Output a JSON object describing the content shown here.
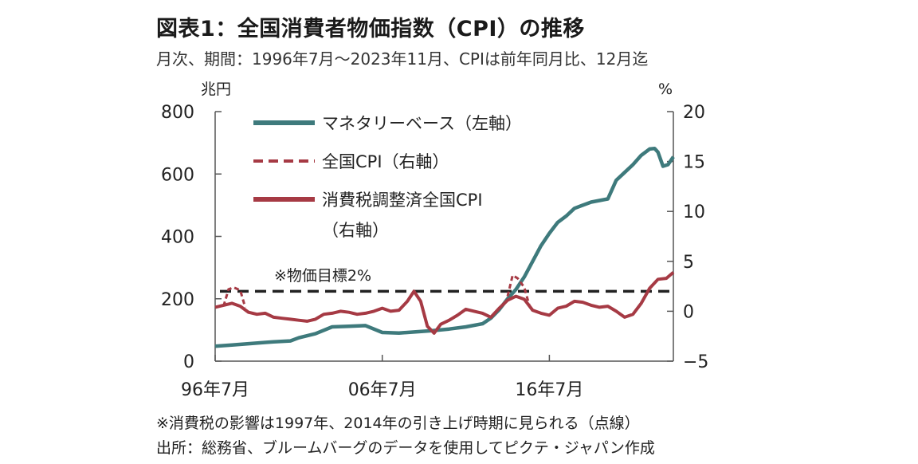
{
  "header": {
    "title": "図表1：全国消費者物価指数（CPI）の推移",
    "subtitle": "月次、期間：1996年7月～2023年11月、CPIは前年同月比、12月迄"
  },
  "footnotes": {
    "line1": "※消費税の影響は1997年、2014年の引き上げ時期に見られる（点線）",
    "line2": "出所：総務省、ブルームバーグのデータを使用してピクテ・ジャパン作成"
  },
  "colors": {
    "base": "#3e7a7c",
    "cpi": "#a63a44",
    "target": "#222222",
    "axis": "#555555"
  },
  "chart_data": {
    "type": "line",
    "left_axis": {
      "unit": "兆円",
      "range": [
        0,
        800
      ],
      "ticks": [
        "0",
        "200",
        "400",
        "600",
        "800"
      ]
    },
    "right_axis": {
      "unit": "%",
      "range": [
        -5,
        20
      ],
      "ticks": [
        "−5",
        "0",
        "5",
        "10",
        "15",
        "20"
      ]
    },
    "x_range": [
      1996.5,
      2023.92
    ],
    "x_ticks": [
      {
        "x": 1996.5,
        "label": "96年7月"
      },
      {
        "x": 2006.5,
        "label": "06年7月"
      },
      {
        "x": 2016.5,
        "label": "16年7月"
      }
    ],
    "grid": false,
    "legend_position": "top-left",
    "annotation": {
      "text": "※物価目標2%",
      "value": 2
    },
    "series": [
      {
        "name": "マネタリーベース（左軸）",
        "axis": "left",
        "style": "solid",
        "color_key": "base",
        "x": [
          1996.5,
          1997.5,
          1998.5,
          1999.5,
          2000.0,
          2001.0,
          2001.5,
          2002.5,
          2003.5,
          2004.5,
          2005.5,
          2006.5,
          2007.5,
          2008.5,
          2009.5,
          2010.5,
          2011.5,
          2012.5,
          2013.0,
          2013.5,
          2014.0,
          2014.5,
          2015.0,
          2015.5,
          2016.0,
          2016.5,
          2017.0,
          2017.5,
          2018.0,
          2018.5,
          2019.0,
          2019.5,
          2020.0,
          2020.5,
          2021.0,
          2021.5,
          2022.0,
          2022.5,
          2022.8,
          2023.0,
          2023.3,
          2023.6,
          2023.92
        ],
        "y": [
          48,
          52,
          56,
          60,
          62,
          65,
          75,
          88,
          110,
          112,
          114,
          92,
          90,
          94,
          98,
          103,
          110,
          120,
          138,
          165,
          200,
          230,
          270,
          320,
          370,
          410,
          445,
          465,
          490,
          500,
          510,
          515,
          520,
          580,
          605,
          630,
          660,
          680,
          682,
          670,
          625,
          630,
          655
        ]
      },
      {
        "name": "全国CPI（右軸）",
        "axis": "right",
        "style": "dashed",
        "color_key": "cpi",
        "segments": [
          {
            "x": [
              1997.0,
              1997.3,
              1997.6,
              1998.0,
              1998.3
            ],
            "y": [
              0.5,
              2.2,
              2.4,
              2.1,
              0.4
            ]
          },
          {
            "x": [
              2014.0,
              2014.3,
              2014.6,
              2015.0,
              2015.3
            ],
            "y": [
              1.5,
              3.6,
              3.3,
              2.4,
              0.6
            ]
          }
        ]
      },
      {
        "name": "消費税調整済全国CPI（右軸）",
        "axis": "right",
        "style": "solid",
        "color_key": "cpi",
        "x": [
          1996.5,
          1997.0,
          1997.5,
          1998.0,
          1998.5,
          1999.0,
          1999.5,
          2000.0,
          2000.5,
          2001.0,
          2001.5,
          2002.0,
          2002.5,
          2003.0,
          2003.5,
          2004.0,
          2004.5,
          2005.0,
          2005.5,
          2006.0,
          2006.5,
          2007.0,
          2007.5,
          2008.0,
          2008.4,
          2008.8,
          2009.2,
          2009.6,
          2010.0,
          2010.5,
          2011.0,
          2011.5,
          2012.0,
          2012.5,
          2013.0,
          2013.5,
          2014.0,
          2014.5,
          2015.0,
          2015.5,
          2016.0,
          2016.5,
          2017.0,
          2017.5,
          2018.0,
          2018.5,
          2019.0,
          2019.5,
          2020.0,
          2020.5,
          2021.0,
          2021.5,
          2022.0,
          2022.5,
          2023.0,
          2023.5,
          2023.92
        ],
        "y": [
          0.4,
          0.6,
          0.8,
          0.5,
          -0.1,
          -0.3,
          -0.2,
          -0.6,
          -0.7,
          -0.8,
          -0.9,
          -1.0,
          -0.8,
          -0.3,
          -0.2,
          0.0,
          -0.1,
          -0.3,
          -0.2,
          0.0,
          0.3,
          0.0,
          0.1,
          1.0,
          2.0,
          1.0,
          -1.5,
          -2.2,
          -1.3,
          -0.9,
          -0.4,
          0.2,
          0.0,
          -0.2,
          -0.6,
          0.3,
          1.1,
          1.5,
          1.2,
          0.1,
          -0.2,
          -0.4,
          0.3,
          0.5,
          1.0,
          0.9,
          0.6,
          0.4,
          0.5,
          0.0,
          -0.6,
          -0.3,
          0.8,
          2.3,
          3.2,
          3.3,
          3.9
        ]
      }
    ]
  }
}
